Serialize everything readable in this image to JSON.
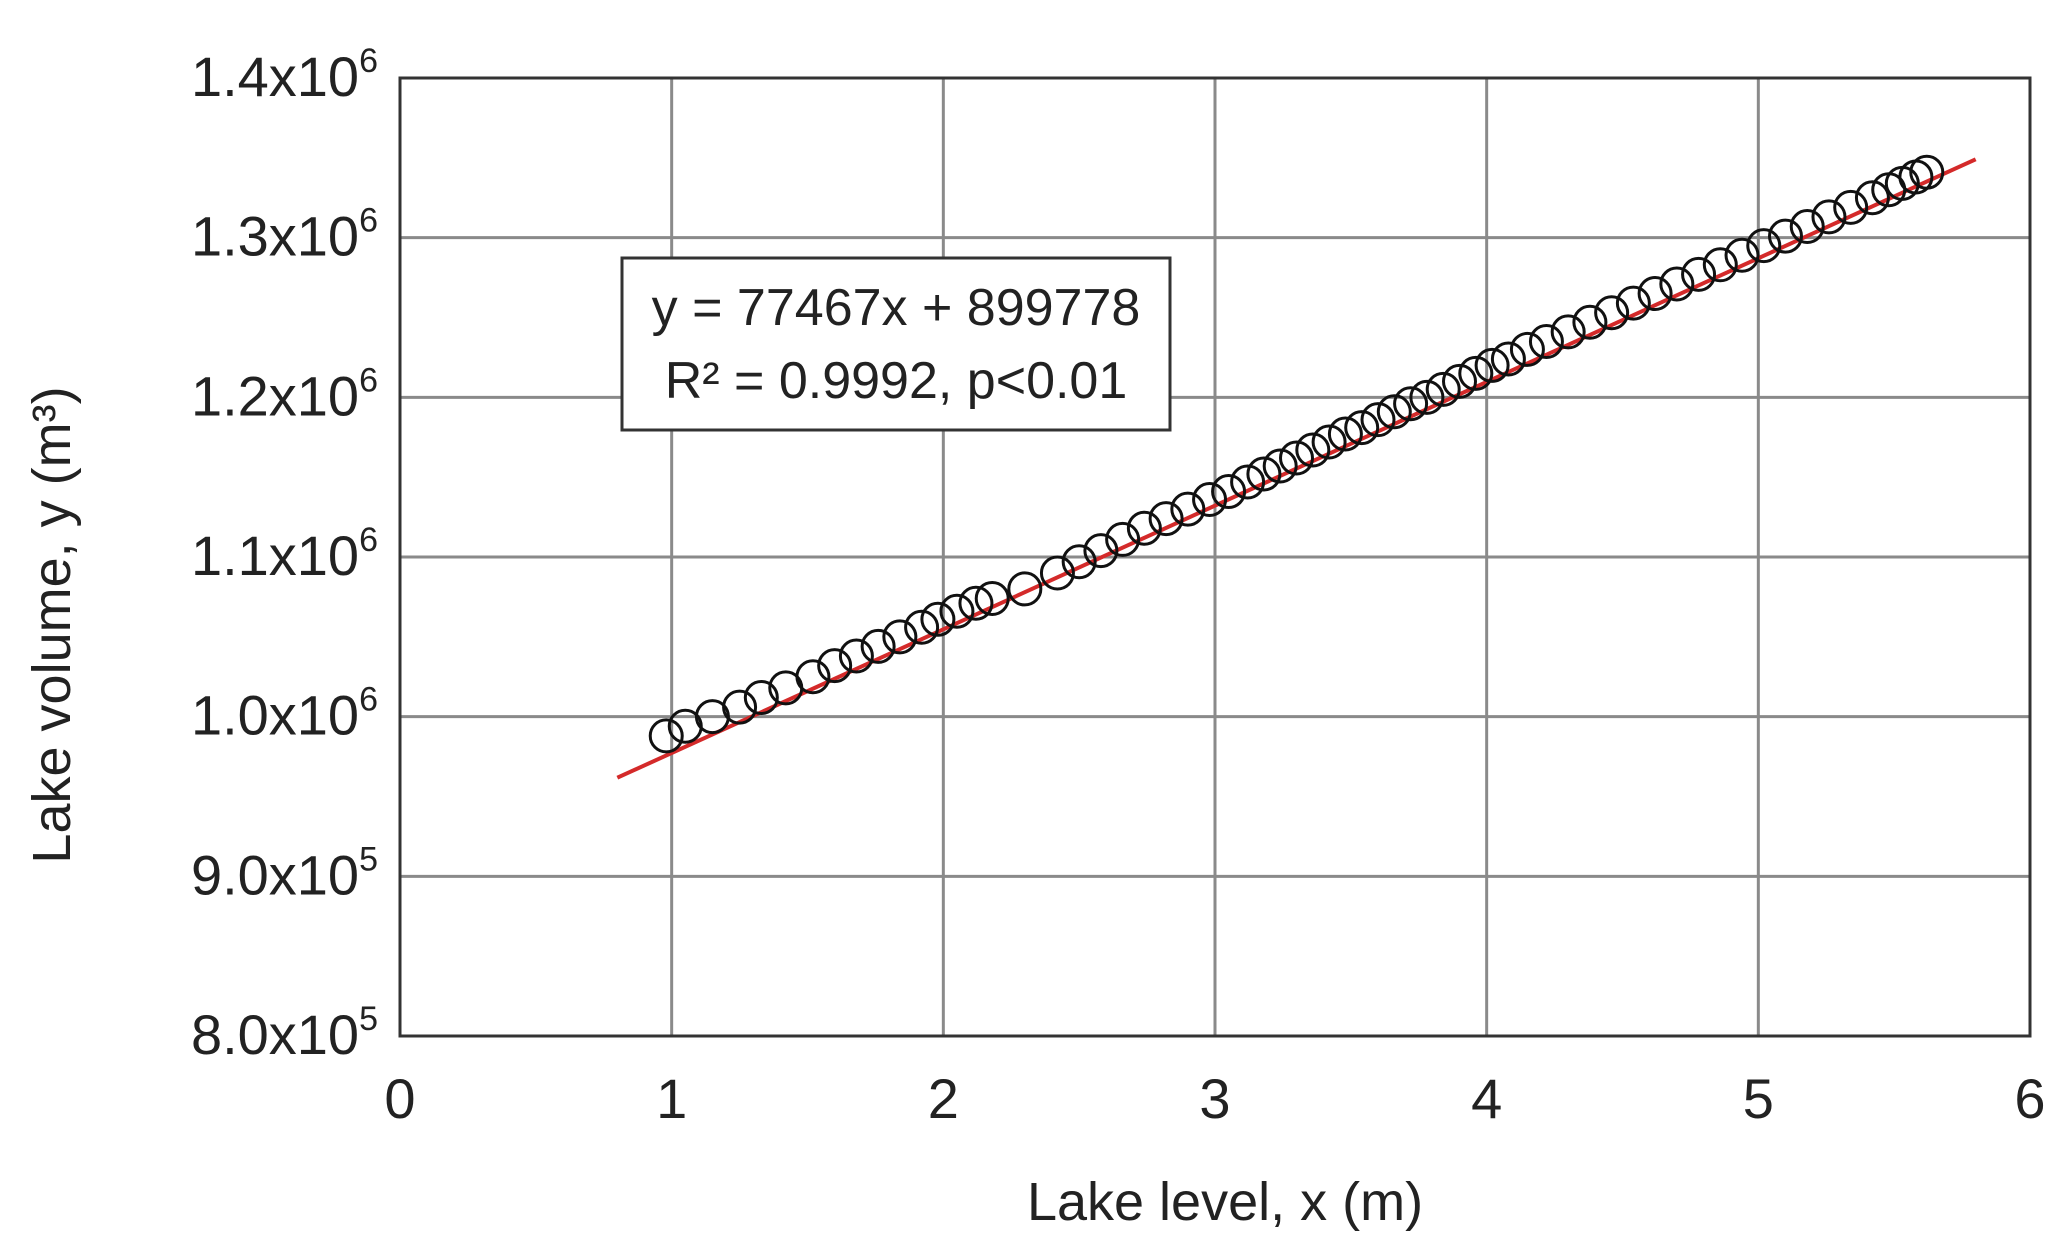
{
  "chart_data": {
    "type": "scatter",
    "xlabel": "Lake level, x (m)",
    "ylabel": "Lake volume, y (m³)",
    "xlim": [
      0,
      6
    ],
    "ylim": [
      800000,
      1400000
    ],
    "grid": true,
    "x_ticks": [
      "0",
      "1",
      "2",
      "3",
      "4",
      "5",
      "6"
    ],
    "y_ticks": [
      {
        "mantissa": "8.0x10",
        "exp": "5"
      },
      {
        "mantissa": "9.0x10",
        "exp": "5"
      },
      {
        "mantissa": "1.0x10",
        "exp": "6"
      },
      {
        "mantissa": "1.1x10",
        "exp": "6"
      },
      {
        "mantissa": "1.2x10",
        "exp": "6"
      },
      {
        "mantissa": "1.3x10",
        "exp": "6"
      },
      {
        "mantissa": "1.4x10",
        "exp": "6"
      }
    ],
    "annotation": {
      "line1": "y = 77467x + 899778",
      "line2": "R² = 0.9992, p<0.01"
    },
    "series": [
      {
        "marker": "open-circle",
        "color": "#111111",
        "x": [
          0.98,
          1.05,
          1.15,
          1.25,
          1.33,
          1.42,
          1.52,
          1.6,
          1.68,
          1.76,
          1.84,
          1.92,
          1.98,
          2.05,
          2.12,
          2.18,
          2.3,
          2.42,
          2.5,
          2.58,
          2.66,
          2.74,
          2.82,
          2.9,
          2.98,
          3.05,
          3.12,
          3.18,
          3.24,
          3.3,
          3.36,
          3.42,
          3.48,
          3.54,
          3.6,
          3.66,
          3.72,
          3.78,
          3.84,
          3.9,
          3.96,
          4.02,
          4.08,
          4.15,
          4.22,
          4.3,
          4.38,
          4.46,
          4.54,
          4.62,
          4.7,
          4.78,
          4.86,
          4.94,
          5.02,
          5.1,
          5.18,
          5.26,
          5.34,
          5.42,
          5.48,
          5.53,
          5.58,
          5.62
        ],
        "y": [
          988000,
          994000,
          1000000,
          1006000,
          1012000,
          1018000,
          1025000,
          1032000,
          1038000,
          1044000,
          1050000,
          1056000,
          1061000,
          1066000,
          1071000,
          1074000,
          1080000,
          1090000,
          1097000,
          1104000,
          1111000,
          1118000,
          1124000,
          1130000,
          1136000,
          1141000,
          1147000,
          1152000,
          1157000,
          1162000,
          1167000,
          1172000,
          1177000,
          1181000,
          1186000,
          1191000,
          1196000,
          1200000,
          1205000,
          1210000,
          1215000,
          1220000,
          1224000,
          1230000,
          1235000,
          1241000,
          1247000,
          1253000,
          1259000,
          1265000,
          1271000,
          1277000,
          1283000,
          1289000,
          1295000,
          1301000,
          1307000,
          1313000,
          1319000,
          1325000,
          1330000,
          1334000,
          1338000,
          1341000
        ]
      }
    ],
    "trendline": {
      "slope": 77467,
      "intercept": 899778,
      "x_range": [
        0.8,
        5.8
      ],
      "color": "#d42a2a"
    }
  }
}
